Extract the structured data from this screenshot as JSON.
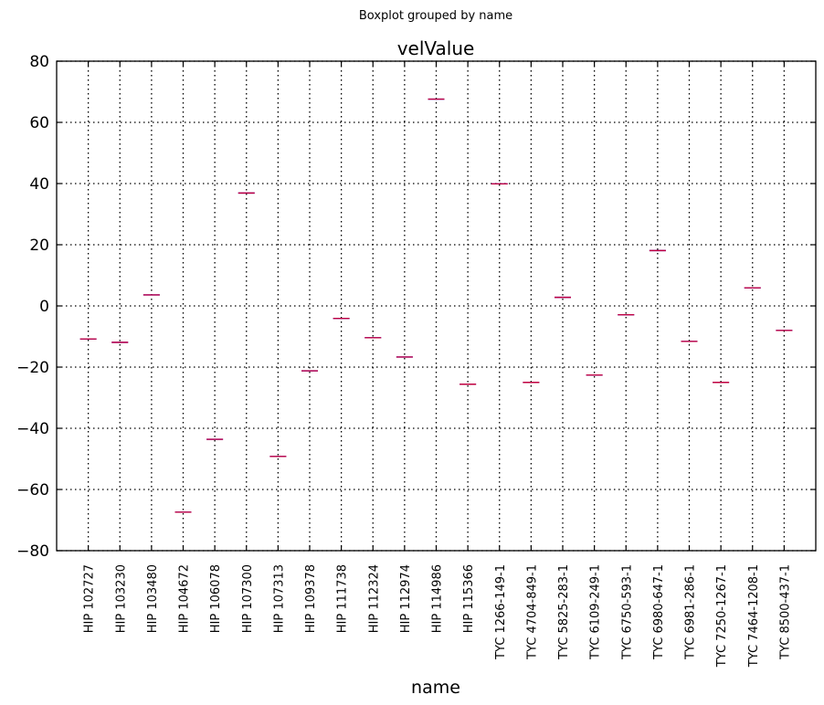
{
  "chart_data": {
    "type": "box",
    "suptitle": "Boxplot grouped by name",
    "title": "velValue",
    "xlabel": "name",
    "ylabel": "",
    "ylim": [
      -80,
      80
    ],
    "yticks": [
      -80,
      -60,
      -40,
      -20,
      0,
      20,
      40,
      60,
      80
    ],
    "ytick_labels": [
      "−80",
      "−60",
      "−40",
      "−20",
      "0",
      "20",
      "40",
      "60",
      "80"
    ],
    "grid": true,
    "box_color": "#0000ff",
    "median_color": "#ff0000",
    "categories": [
      "HIP 102727",
      "HIP 103230",
      "HIP 103480",
      "HIP 104672",
      "HIP 106078",
      "HIP 107300",
      "HIP 107313",
      "HIP 109378",
      "HIP 111738",
      "HIP 112324",
      "HIP 112974",
      "HIP 114986",
      "HIP 115366",
      "TYC 1266-149-1",
      "TYC 4704-849-1",
      "TYC 5825-283-1",
      "TYC 6109-249-1",
      "TYC 6750-593-1",
      "TYC 6980-647-1",
      "TYC 6981-286-1",
      "TYC 7250-1267-1",
      "TYC 7464-1208-1",
      "TYC 8500-437-1"
    ],
    "values": [
      -10.8,
      -11.9,
      3.6,
      -67.4,
      -43.6,
      36.9,
      -49.2,
      -21.2,
      -4.1,
      -10.4,
      -16.7,
      67.6,
      -25.6,
      39.9,
      -25.0,
      2.8,
      -22.6,
      -2.9,
      18.1,
      -11.6,
      -25.0,
      5.9,
      -8.0
    ]
  }
}
